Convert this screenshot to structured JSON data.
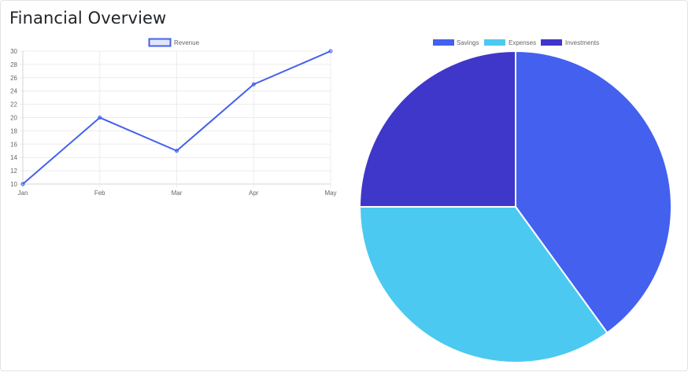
{
  "page": {
    "title": "Financial Overview"
  },
  "chart_data": [
    {
      "type": "line",
      "categories": [
        "Jan",
        "Feb",
        "Mar",
        "Apr",
        "May"
      ],
      "series": [
        {
          "name": "Revenue",
          "values": [
            10,
            20,
            15,
            25,
            30
          ],
          "color": "#4361ee"
        }
      ],
      "ylim": [
        10,
        30
      ],
      "yticks": [
        "10",
        "12",
        "14",
        "16",
        "18",
        "20",
        "22",
        "24",
        "26",
        "28",
        "30"
      ],
      "grid": true,
      "legend": "top-center"
    },
    {
      "type": "pie",
      "labels": [
        "Savings",
        "Expenses",
        "Investments"
      ],
      "values": [
        40,
        35,
        25
      ],
      "colors": [
        "#4361ee",
        "#4cc9f0",
        "#3f37c9"
      ],
      "legend": "top-center"
    }
  ]
}
